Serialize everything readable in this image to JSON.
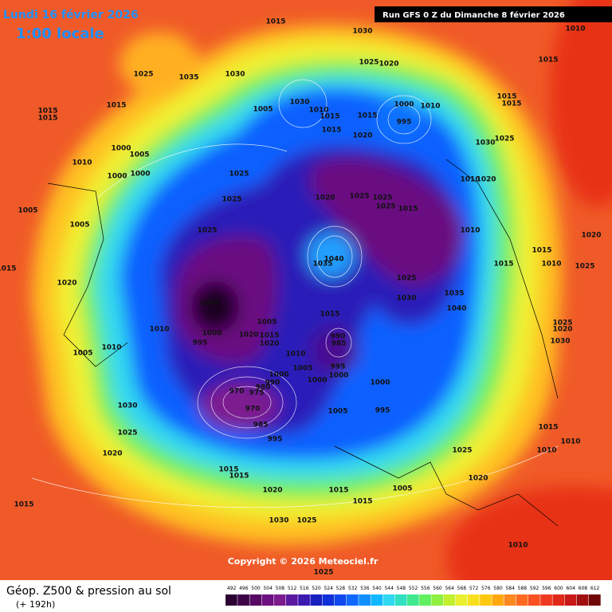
{
  "header": {
    "date": "Lundi 16 février 2026",
    "time": "1:00 locale",
    "run": "Run GFS 0 Z du Dimanche 8 février 2026"
  },
  "copyright": "Copyright © 2026 Meteociel.fr",
  "footer": {
    "title": "Géop. Z500 & pression au sol",
    "lead": "(+ 192h)"
  },
  "scale": {
    "values": [
      492,
      496,
      500,
      504,
      508,
      512,
      516,
      520,
      524,
      528,
      532,
      536,
      540,
      544,
      548,
      552,
      556,
      560,
      564,
      568,
      572,
      576,
      580,
      584,
      588,
      592,
      596,
      600,
      604,
      608,
      612
    ],
    "colors": [
      "#2b0133",
      "#3d0548",
      "#560a63",
      "#6d1080",
      "#7d1b8f",
      "#5a1aa0",
      "#3a1ab0",
      "#1a20c0",
      "#1030d8",
      "#1048f0",
      "#1068ff",
      "#1090ff",
      "#10b8ff",
      "#30d8f0",
      "#30e0c0",
      "#40e890",
      "#60f060",
      "#90f040",
      "#c0f030",
      "#e8f030",
      "#f8e020",
      "#ffc810",
      "#ffa810",
      "#ff8820",
      "#ff6a20",
      "#f85020",
      "#f03820",
      "#e02818",
      "#c81818",
      "#a01010",
      "#700808"
    ]
  },
  "isobar_labels": [
    1015,
    1030,
    1010,
    1015,
    1025,
    1020,
    1025,
    1035,
    1030,
    1015,
    1015,
    1015,
    1005,
    1030,
    1010,
    1015,
    1015,
    1000,
    1010,
    995,
    1015,
    1015,
    1015,
    1020,
    1030,
    1025,
    1000,
    1005,
    1010,
    1000,
    1000,
    1025,
    1010,
    1020,
    1025,
    1020,
    1025,
    1025,
    1025,
    1015,
    1005,
    1005,
    1025,
    1010,
    1020,
    1015,
    1035,
    1040,
    1015,
    1010,
    1025,
    1015,
    1020,
    1025,
    1030,
    1035,
    1040,
    1005,
    1015,
    1010,
    1000,
    995,
    1020,
    1005,
    1015,
    1020,
    990,
    985,
    1010,
    1005,
    995,
    1000,
    1000,
    1000,
    1000,
    1010,
    1005,
    970,
    975,
    980,
    990,
    970,
    1005,
    995,
    985,
    995,
    1030,
    1025,
    1020,
    1025,
    1015,
    1010,
    1010,
    1015,
    1015,
    1020,
    1015,
    1015,
    1005,
    1020,
    1015,
    1030,
    1025,
    1010,
    1025,
    1030,
    1025,
    1020
  ]
}
